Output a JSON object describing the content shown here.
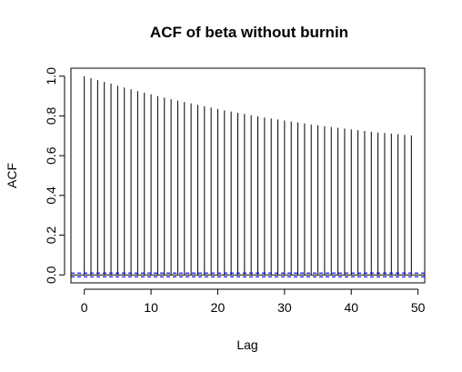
{
  "chart_data": {
    "type": "bar",
    "title": "ACF of beta without burnin",
    "xlabel": "Lag",
    "ylabel": "ACF",
    "xlim": [
      -2,
      51
    ],
    "ylim": [
      -0.04,
      1.04
    ],
    "x_ticks": [
      0,
      10,
      20,
      30,
      40,
      50
    ],
    "y_ticks": [
      0.0,
      0.2,
      0.4,
      0.6,
      0.8,
      1.0
    ],
    "x_tick_labels": [
      "0",
      "10",
      "20",
      "30",
      "40",
      "50"
    ],
    "y_tick_labels": [
      "0.0",
      "0.2",
      "0.4",
      "0.6",
      "0.8",
      "1.0"
    ],
    "lags": [
      0,
      1,
      2,
      3,
      4,
      5,
      6,
      7,
      8,
      9,
      10,
      11,
      12,
      13,
      14,
      15,
      16,
      17,
      18,
      19,
      20,
      21,
      22,
      23,
      24,
      25,
      26,
      27,
      28,
      29,
      30,
      31,
      32,
      33,
      34,
      35,
      36,
      37,
      38,
      39,
      40,
      41,
      42,
      43,
      44,
      45,
      46,
      47,
      48,
      49
    ],
    "acf_values": [
      1.0,
      0.99,
      0.981,
      0.971,
      0.962,
      0.952,
      0.943,
      0.934,
      0.925,
      0.917,
      0.909,
      0.9,
      0.892,
      0.884,
      0.877,
      0.87,
      0.863,
      0.856,
      0.849,
      0.842,
      0.835,
      0.828,
      0.822,
      0.816,
      0.81,
      0.804,
      0.798,
      0.792,
      0.787,
      0.782,
      0.777,
      0.772,
      0.767,
      0.762,
      0.757,
      0.752,
      0.748,
      0.744,
      0.74,
      0.736,
      0.732,
      0.728,
      0.724,
      0.72,
      0.717,
      0.714,
      0.711,
      0.708,
      0.705,
      0.702
    ],
    "zero_line_color": "#000000",
    "confidence_bound": 0.0095,
    "confidence_color": "#0000ff",
    "grid": false
  }
}
